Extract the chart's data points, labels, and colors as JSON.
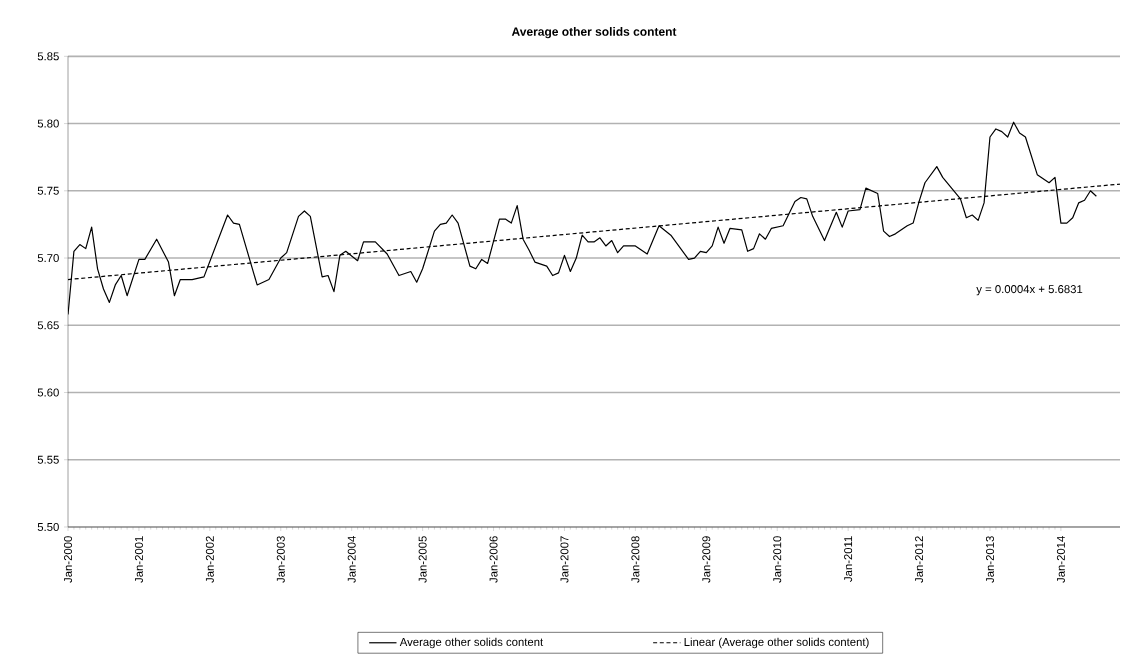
{
  "chart_data": {
    "type": "line",
    "title": "Average other solids content",
    "xlim": [
      "2000-01",
      "2014-11"
    ],
    "xticks": [
      {
        "value": "2000-01",
        "label": "Jan-2000"
      },
      {
        "value": "2001-01",
        "label": "Jan-2001"
      },
      {
        "value": "2002-01",
        "label": "Jan-2002"
      },
      {
        "value": "2003-01",
        "label": "Jan-2003"
      },
      {
        "value": "2004-01",
        "label": "Jan-2004"
      },
      {
        "value": "2005-01",
        "label": "Jan-2005"
      },
      {
        "value": "2006-01",
        "label": "Jan-2006"
      },
      {
        "value": "2007-01",
        "label": "Jan-2007"
      },
      {
        "value": "2008-01",
        "label": "Jan-2008"
      },
      {
        "value": "2009-01",
        "label": "Jan-2009"
      },
      {
        "value": "2010-01",
        "label": "Jan-2010"
      },
      {
        "value": "2011-01",
        "label": "Jan-2011"
      },
      {
        "value": "2012-01",
        "label": "Jan-2012"
      },
      {
        "value": "2013-01",
        "label": "Jan-2013"
      },
      {
        "value": "2014-01",
        "label": "Jan-2014"
      }
    ],
    "ylim": [
      5.5,
      5.85
    ],
    "yticks": [
      {
        "value": 5.5,
        "label": "5.50"
      },
      {
        "value": 5.55,
        "label": "5.55"
      },
      {
        "value": 5.6,
        "label": "5.60"
      },
      {
        "value": 5.65,
        "label": "5.65"
      },
      {
        "value": 5.7,
        "label": "5.70"
      },
      {
        "value": 5.75,
        "label": "5.75"
      },
      {
        "value": 5.8,
        "label": "5.80"
      },
      {
        "value": 5.85,
        "label": "5.85"
      }
    ],
    "grid": "y",
    "legend": "bottom",
    "marker": "none",
    "annotations": [
      "y = 0.0004x + 5.6831"
    ],
    "series": [
      {
        "name": "Average other solids content",
        "color": "#000000",
        "line_style": "solid",
        "x": [
          "2000-01",
          "2000-02",
          "2000-03",
          "2000-04",
          "2000-05",
          "2000-06",
          "2000-07",
          "2000-08",
          "2000-09",
          "2000-10",
          "2000-11",
          "2001-01",
          "2001-02",
          "2001-04",
          "2001-06",
          "2001-07",
          "2001-08",
          "2001-10",
          "2001-12",
          "2002-04",
          "2002-05",
          "2002-06",
          "2002-09",
          "2002-11",
          "2003-01",
          "2003-02",
          "2003-04",
          "2003-05",
          "2003-06",
          "2003-08",
          "2003-09",
          "2003-10",
          "2003-11",
          "2003-12",
          "2004-02",
          "2004-03",
          "2004-05",
          "2004-07",
          "2004-09",
          "2004-11",
          "2004-12",
          "2005-01",
          "2005-03",
          "2005-04",
          "2005-05",
          "2005-06",
          "2005-07",
          "2005-09",
          "2005-10",
          "2005-11",
          "2005-12",
          "2006-02",
          "2006-03",
          "2006-04",
          "2006-05",
          "2006-06",
          "2006-07",
          "2006-08",
          "2006-10",
          "2006-11",
          "2006-12",
          "2007-01",
          "2007-02",
          "2007-03",
          "2007-04",
          "2007-05",
          "2007-06",
          "2007-07",
          "2007-08",
          "2007-09",
          "2007-10",
          "2007-11",
          "2008-01",
          "2008-03",
          "2008-05",
          "2008-07",
          "2008-10",
          "2008-11",
          "2008-12",
          "2009-01",
          "2009-02",
          "2009-03",
          "2009-04",
          "2009-05",
          "2009-07",
          "2009-08",
          "2009-09",
          "2009-10",
          "2009-11",
          "2009-12",
          "2010-02",
          "2010-04",
          "2010-05",
          "2010-06",
          "2010-07",
          "2010-09",
          "2010-11",
          "2010-12",
          "2011-01",
          "2011-03",
          "2011-04",
          "2011-06",
          "2011-07",
          "2011-08",
          "2011-09",
          "2011-11",
          "2011-12",
          "2012-01",
          "2012-02",
          "2012-04",
          "2012-05",
          "2012-08",
          "2012-09",
          "2012-10",
          "2012-11",
          "2012-12",
          "2013-01",
          "2013-02",
          "2013-03",
          "2013-04",
          "2013-05",
          "2013-06",
          "2013-07",
          "2013-09",
          "2013-11",
          "2013-12",
          "2014-01",
          "2014-02",
          "2014-03",
          "2014-04",
          "2014-05",
          "2014-06",
          "2014-07"
        ],
        "values": [
          5.658,
          5.705,
          5.71,
          5.707,
          5.723,
          5.692,
          5.677,
          5.667,
          5.68,
          5.687,
          5.672,
          5.699,
          5.699,
          5.714,
          5.697,
          5.672,
          5.684,
          5.684,
          5.686,
          5.732,
          5.726,
          5.725,
          5.68,
          5.684,
          5.7,
          5.704,
          5.731,
          5.735,
          5.731,
          5.686,
          5.687,
          5.675,
          5.702,
          5.705,
          5.698,
          5.712,
          5.712,
          5.703,
          5.687,
          5.69,
          5.682,
          5.692,
          5.72,
          5.725,
          5.726,
          5.732,
          5.726,
          5.694,
          5.692,
          5.699,
          5.696,
          5.729,
          5.729,
          5.726,
          5.739,
          5.714,
          5.706,
          5.697,
          5.694,
          5.687,
          5.689,
          5.702,
          5.69,
          5.7,
          5.717,
          5.712,
          5.712,
          5.715,
          5.709,
          5.713,
          5.704,
          5.709,
          5.709,
          5.703,
          5.724,
          5.717,
          5.699,
          5.7,
          5.705,
          5.704,
          5.709,
          5.723,
          5.711,
          5.722,
          5.721,
          5.705,
          5.707,
          5.718,
          5.714,
          5.722,
          5.724,
          5.742,
          5.745,
          5.744,
          5.731,
          5.713,
          5.734,
          5.723,
          5.735,
          5.736,
          5.752,
          5.748,
          5.72,
          5.716,
          5.718,
          5.724,
          5.726,
          5.742,
          5.756,
          5.768,
          5.76,
          5.744,
          5.73,
          5.732,
          5.728,
          5.741,
          5.79,
          5.796,
          5.794,
          5.79,
          5.801,
          5.793,
          5.79,
          5.762,
          5.756,
          5.76,
          5.726,
          5.726,
          5.73,
          5.741,
          5.743,
          5.75,
          5.746
        ]
      },
      {
        "name": "Linear (Average other solids content)",
        "color": "#000000",
        "line_style": "dashed",
        "x": [
          "2000-01",
          "2014-11"
        ],
        "values": [
          5.684,
          5.755
        ]
      }
    ]
  }
}
